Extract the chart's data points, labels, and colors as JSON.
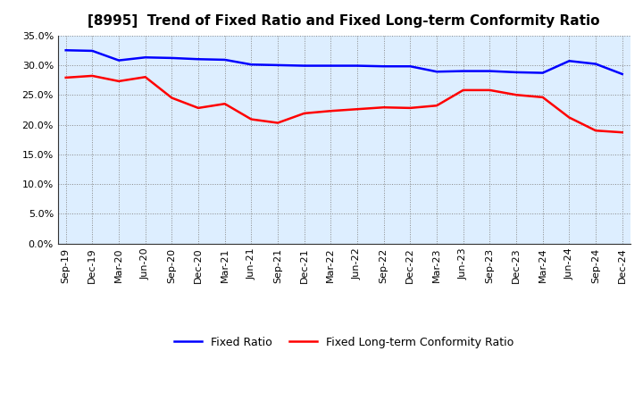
{
  "title": "[8995]  Trend of Fixed Ratio and Fixed Long-term Conformity Ratio",
  "x_labels": [
    "Sep-19",
    "Dec-19",
    "Mar-20",
    "Jun-20",
    "Sep-20",
    "Dec-20",
    "Mar-21",
    "Jun-21",
    "Sep-21",
    "Dec-21",
    "Mar-22",
    "Jun-22",
    "Sep-22",
    "Dec-22",
    "Mar-23",
    "Jun-23",
    "Sep-23",
    "Dec-23",
    "Mar-24",
    "Jun-24",
    "Sep-24",
    "Dec-24"
  ],
  "fixed_ratio": [
    32.5,
    32.4,
    30.8,
    31.3,
    31.2,
    31.0,
    30.9,
    30.1,
    30.0,
    29.9,
    29.9,
    29.9,
    29.8,
    29.8,
    28.9,
    29.0,
    29.0,
    28.8,
    28.7,
    30.7,
    30.2,
    28.5
  ],
  "fixed_lt_ratio": [
    27.9,
    28.2,
    27.3,
    28.0,
    24.5,
    22.8,
    23.5,
    20.9,
    20.3,
    21.9,
    22.3,
    22.6,
    22.9,
    22.8,
    23.2,
    25.8,
    25.8,
    25.0,
    24.6,
    21.2,
    19.0,
    18.7
  ],
  "fixed_ratio_color": "#0000FF",
  "fixed_lt_ratio_color": "#FF0000",
  "ylim": [
    0,
    35
  ],
  "yticks": [
    0,
    5,
    10,
    15,
    20,
    25,
    30,
    35
  ],
  "background_color": "#FFFFFF",
  "plot_bg_color": "#DDEEFF",
  "grid_color": "#888888",
  "legend_fixed": "Fixed Ratio",
  "legend_lt": "Fixed Long-term Conformity Ratio",
  "title_fontsize": 11,
  "tick_fontsize": 8,
  "legend_fontsize": 9
}
